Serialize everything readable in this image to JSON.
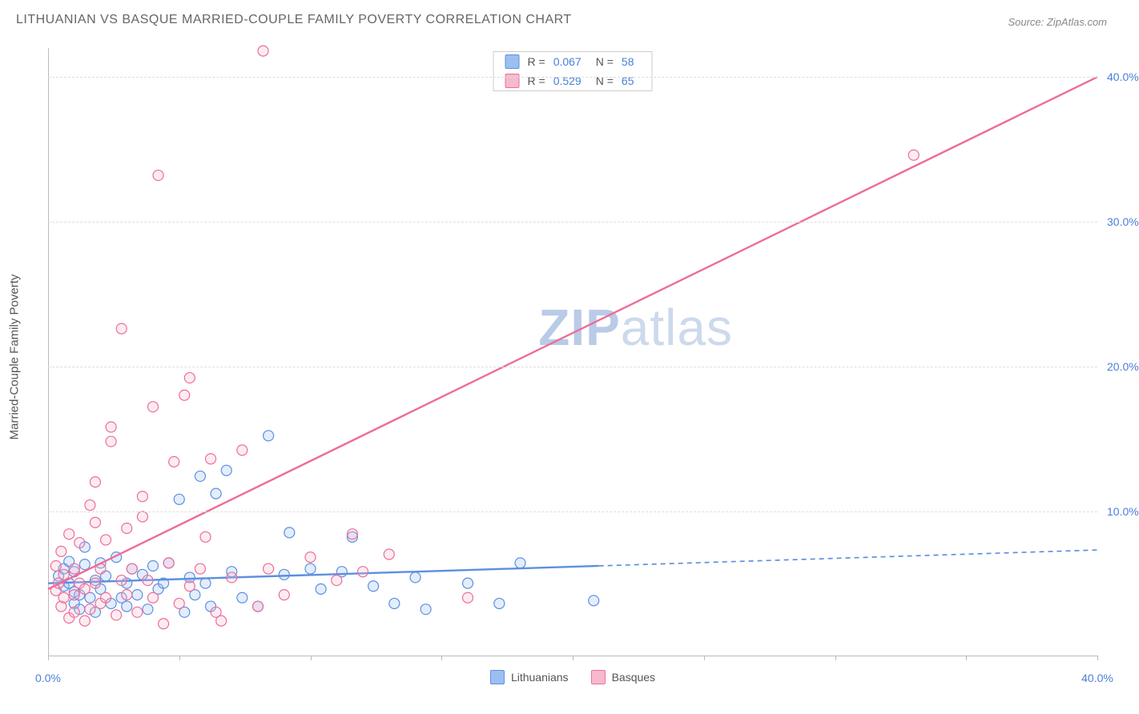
{
  "title": "LITHUANIAN VS BASQUE MARRIED-COUPLE FAMILY POVERTY CORRELATION CHART",
  "source": "Source: ZipAtlas.com",
  "watermark_bold": "ZIP",
  "watermark_light": "atlas",
  "ylabel": "Married-Couple Family Poverty",
  "chart": {
    "type": "scatter",
    "xlim": [
      0,
      40
    ],
    "ylim": [
      0,
      42
    ],
    "grid_color": "#dddddd",
    "axis_color": "#bbbbbb",
    "background_color": "#ffffff",
    "tick_color": "#4a7fd8",
    "yticks": [
      10,
      20,
      30,
      40
    ],
    "ytick_labels": [
      "10.0%",
      "20.0%",
      "30.0%",
      "40.0%"
    ],
    "xticks": [
      0,
      10,
      20,
      30,
      40
    ],
    "xtick_minor": [
      0,
      5,
      10,
      15,
      20,
      25,
      30,
      35,
      40
    ],
    "xtick_labels": {
      "0": "0.0%",
      "40": "40.0%"
    },
    "marker_radius": 6.5,
    "marker_stroke_width": 1.2,
    "marker_fill_opacity": 0.28
  },
  "series": [
    {
      "name": "Lithuanians",
      "color": "#5c8fe0",
      "fill": "#9cbff0",
      "R": "0.067",
      "N": "58",
      "trend": {
        "x1": 0,
        "y1": 5.0,
        "x2_solid": 21,
        "y2_solid": 6.2,
        "x2": 40,
        "y2": 7.3,
        "dash_from": 21,
        "width": 2.4
      },
      "points": [
        [
          0.4,
          5.5
        ],
        [
          0.6,
          4.8
        ],
        [
          0.6,
          6.0
        ],
        [
          0.8,
          5.0
        ],
        [
          0.8,
          6.5
        ],
        [
          1.0,
          3.6
        ],
        [
          1.0,
          4.4
        ],
        [
          1.0,
          5.8
        ],
        [
          1.2,
          3.2
        ],
        [
          1.2,
          4.2
        ],
        [
          1.4,
          6.3
        ],
        [
          1.4,
          7.5
        ],
        [
          1.6,
          4.0
        ],
        [
          1.8,
          5.2
        ],
        [
          1.8,
          3.0
        ],
        [
          2.0,
          6.4
        ],
        [
          2.0,
          4.6
        ],
        [
          2.2,
          5.5
        ],
        [
          2.4,
          3.6
        ],
        [
          2.6,
          6.8
        ],
        [
          2.8,
          4.0
        ],
        [
          3.0,
          5.0
        ],
        [
          3.0,
          3.4
        ],
        [
          3.2,
          6.0
        ],
        [
          3.4,
          4.2
        ],
        [
          3.6,
          5.6
        ],
        [
          3.8,
          3.2
        ],
        [
          4.0,
          6.2
        ],
        [
          4.2,
          4.6
        ],
        [
          4.4,
          5.0
        ],
        [
          4.6,
          6.4
        ],
        [
          5.0,
          10.8
        ],
        [
          5.2,
          3.0
        ],
        [
          5.4,
          5.4
        ],
        [
          5.6,
          4.2
        ],
        [
          5.8,
          12.4
        ],
        [
          6.0,
          5.0
        ],
        [
          6.2,
          3.4
        ],
        [
          6.4,
          11.2
        ],
        [
          6.8,
          12.8
        ],
        [
          7.0,
          5.8
        ],
        [
          7.4,
          4.0
        ],
        [
          8.0,
          3.4
        ],
        [
          8.4,
          15.2
        ],
        [
          9.0,
          5.6
        ],
        [
          9.2,
          8.5
        ],
        [
          10.0,
          6.0
        ],
        [
          10.4,
          4.6
        ],
        [
          11.2,
          5.8
        ],
        [
          11.6,
          8.2
        ],
        [
          12.4,
          4.8
        ],
        [
          13.2,
          3.6
        ],
        [
          14.0,
          5.4
        ],
        [
          14.4,
          3.2
        ],
        [
          16.0,
          5.0
        ],
        [
          17.2,
          3.6
        ],
        [
          18.0,
          6.4
        ],
        [
          20.8,
          3.8
        ]
      ]
    },
    {
      "name": "Basques",
      "color": "#ed6d98",
      "fill": "#f6b9cf",
      "R": "0.529",
      "N": "65",
      "trend": {
        "x1": 0,
        "y1": 4.6,
        "x2": 40,
        "y2": 40.0,
        "width": 2.4
      },
      "points": [
        [
          0.3,
          4.5
        ],
        [
          0.3,
          6.2
        ],
        [
          0.4,
          5.0
        ],
        [
          0.5,
          3.4
        ],
        [
          0.5,
          7.2
        ],
        [
          0.6,
          4.0
        ],
        [
          0.6,
          5.6
        ],
        [
          0.8,
          8.4
        ],
        [
          0.8,
          2.6
        ],
        [
          1.0,
          4.2
        ],
        [
          1.0,
          6.0
        ],
        [
          1.0,
          3.0
        ],
        [
          1.2,
          7.8
        ],
        [
          1.2,
          5.0
        ],
        [
          1.4,
          2.4
        ],
        [
          1.4,
          4.6
        ],
        [
          1.6,
          3.2
        ],
        [
          1.6,
          10.4
        ],
        [
          1.8,
          5.0
        ],
        [
          1.8,
          9.2
        ],
        [
          1.8,
          12.0
        ],
        [
          2.0,
          3.6
        ],
        [
          2.0,
          6.0
        ],
        [
          2.2,
          8.0
        ],
        [
          2.2,
          4.0
        ],
        [
          2.4,
          14.8
        ],
        [
          2.4,
          15.8
        ],
        [
          2.6,
          2.8
        ],
        [
          2.8,
          5.2
        ],
        [
          2.8,
          22.6
        ],
        [
          3.0,
          8.8
        ],
        [
          3.0,
          4.2
        ],
        [
          3.2,
          6.0
        ],
        [
          3.4,
          3.0
        ],
        [
          3.6,
          9.6
        ],
        [
          3.6,
          11.0
        ],
        [
          3.8,
          5.2
        ],
        [
          4.0,
          4.0
        ],
        [
          4.0,
          17.2
        ],
        [
          4.2,
          33.2
        ],
        [
          4.4,
          2.2
        ],
        [
          4.6,
          6.4
        ],
        [
          4.8,
          13.4
        ],
        [
          5.0,
          3.6
        ],
        [
          5.2,
          18.0
        ],
        [
          5.4,
          4.8
        ],
        [
          5.4,
          19.2
        ],
        [
          5.8,
          6.0
        ],
        [
          6.0,
          8.2
        ],
        [
          6.2,
          13.6
        ],
        [
          6.4,
          3.0
        ],
        [
          6.6,
          2.4
        ],
        [
          7.0,
          5.4
        ],
        [
          7.4,
          14.2
        ],
        [
          8.0,
          3.4
        ],
        [
          8.2,
          41.8
        ],
        [
          8.4,
          6.0
        ],
        [
          9.0,
          4.2
        ],
        [
          10.0,
          6.8
        ],
        [
          11.0,
          5.2
        ],
        [
          11.6,
          8.4
        ],
        [
          12.0,
          5.8
        ],
        [
          13.0,
          7.0
        ],
        [
          33.0,
          34.6
        ],
        [
          16.0,
          4.0
        ]
      ]
    }
  ],
  "legend_bottom": [
    {
      "label": "Lithuanians",
      "fill": "#9cbff0",
      "stroke": "#5c8fe0"
    },
    {
      "label": "Basques",
      "fill": "#f6b9cf",
      "stroke": "#ed6d98"
    }
  ]
}
